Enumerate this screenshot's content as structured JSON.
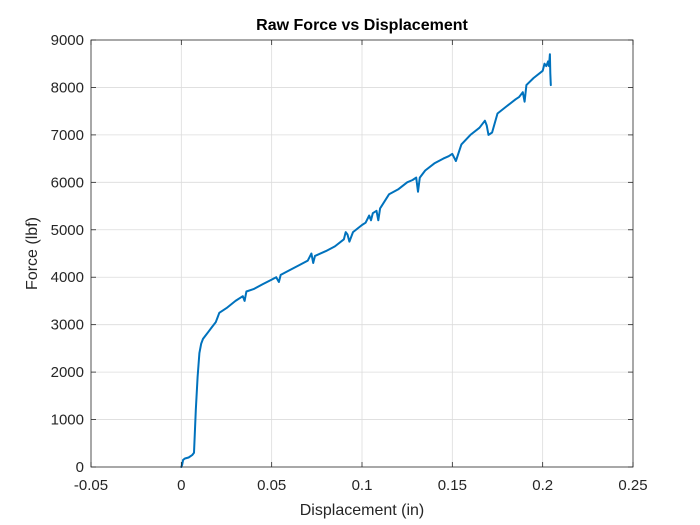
{
  "chart_data": {
    "type": "line",
    "title": "Raw Force vs Displacement",
    "xlabel": "Displacement (in)",
    "ylabel": "Force (lbf)",
    "xlim": [
      -0.05,
      0.25
    ],
    "ylim": [
      0,
      9000
    ],
    "x_ticks": [
      -0.05,
      0,
      0.05,
      0.1,
      0.15,
      0.2,
      0.25
    ],
    "x_tick_labels": [
      "-0.05",
      "0",
      "0.05",
      "0.1",
      "0.15",
      "0.2",
      "0.25"
    ],
    "y_ticks": [
      0,
      1000,
      2000,
      3000,
      4000,
      5000,
      6000,
      7000,
      8000,
      9000
    ],
    "y_tick_labels": [
      "0",
      "1000",
      "2000",
      "3000",
      "4000",
      "5000",
      "6000",
      "7000",
      "8000",
      "9000"
    ],
    "grid": true,
    "legend": "none",
    "series": [
      {
        "color": "#0072BD",
        "x": [
          0,
          0.0005,
          0.001,
          0.002,
          0.004,
          0.006,
          0.007,
          0.008,
          0.009,
          0.01,
          0.011,
          0.0115,
          0.012,
          0.013,
          0.015,
          0.017,
          0.019,
          0.02,
          0.021,
          0.025,
          0.03,
          0.034,
          0.035,
          0.0355,
          0.036,
          0.04,
          0.045,
          0.05,
          0.0525,
          0.054,
          0.055,
          0.06,
          0.065,
          0.07,
          0.072,
          0.073,
          0.074,
          0.08,
          0.085,
          0.09,
          0.091,
          0.092,
          0.093,
          0.095,
          0.1,
          0.102,
          0.104,
          0.105,
          0.106,
          0.108,
          0.109,
          0.11,
          0.115,
          0.12,
          0.125,
          0.128,
          0.13,
          0.131,
          0.132,
          0.135,
          0.14,
          0.145,
          0.148,
          0.15,
          0.152,
          0.155,
          0.16,
          0.165,
          0.168,
          0.169,
          0.17,
          0.172,
          0.175,
          0.18,
          0.185,
          0.187,
          0.189,
          0.19,
          0.191,
          0.195,
          0.2,
          0.201,
          0.202,
          0.203,
          0.2035,
          0.204,
          0.2042,
          0.2045
        ],
        "y": [
          0,
          50,
          150,
          180,
          200,
          250,
          300,
          1200,
          1900,
          2400,
          2600,
          2650,
          2700,
          2750,
          2850,
          2950,
          3050,
          3150,
          3250,
          3350,
          3500,
          3600,
          3500,
          3600,
          3700,
          3750,
          3850,
          3950,
          4000,
          3900,
          4050,
          4150,
          4250,
          4350,
          4500,
          4300,
          4450,
          4550,
          4650,
          4800,
          4950,
          4900,
          4750,
          4950,
          5100,
          5150,
          5300,
          5200,
          5350,
          5400,
          5200,
          5450,
          5750,
          5850,
          6000,
          6050,
          6100,
          5800,
          6100,
          6250,
          6400,
          6500,
          6550,
          6600,
          6450,
          6800,
          7000,
          7150,
          7300,
          7200,
          7000,
          7050,
          7450,
          7600,
          7750,
          7800,
          7900,
          7700,
          8050,
          8200,
          8350,
          8500,
          8450,
          8550,
          8450,
          8700,
          8300,
          8050
        ]
      }
    ]
  }
}
